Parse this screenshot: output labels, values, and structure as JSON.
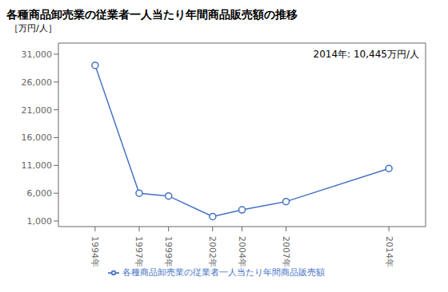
{
  "chart_data": {
    "type": "line",
    "title": "各種商品卸売業の従業者一人当たり年間商品販売額の推移",
    "y_label": "［万円/人］",
    "annotation": "2014年: 10,445万円/人",
    "x": [
      1994,
      1997,
      1999,
      2002,
      2004,
      2007,
      2014
    ],
    "series": [
      {
        "name": "各種商品卸売業の従業者一人当たり年間商品販売額",
        "color": "#4472C4",
        "marker": "circle",
        "values": [
          29000,
          6000,
          5500,
          1800,
          3000,
          4500,
          10445
        ]
      }
    ],
    "xlim": [
      1991.5,
      2016.5
    ],
    "xticks": [
      {
        "value": 1994,
        "label": "1994年"
      },
      {
        "value": 1997,
        "label": "1997年"
      },
      {
        "value": 1999,
        "label": "1999年"
      },
      {
        "value": 2002,
        "label": "2002年"
      },
      {
        "value": 2004,
        "label": "2004年"
      },
      {
        "value": 2007,
        "label": "2007年"
      },
      {
        "value": 2014,
        "label": "2014年"
      }
    ],
    "ylim": [
      0,
      33000
    ],
    "yticks": [
      {
        "value": 1000,
        "label": "1,000"
      },
      {
        "value": 6000,
        "label": "6,000"
      },
      {
        "value": 11000,
        "label": "11,000"
      },
      {
        "value": 16000,
        "label": "16,000"
      },
      {
        "value": 21000,
        "label": "21,000"
      },
      {
        "value": 26000,
        "label": "26,000"
      },
      {
        "value": 31000,
        "label": "31,000"
      }
    ],
    "grid": false,
    "legend": "bottom"
  }
}
